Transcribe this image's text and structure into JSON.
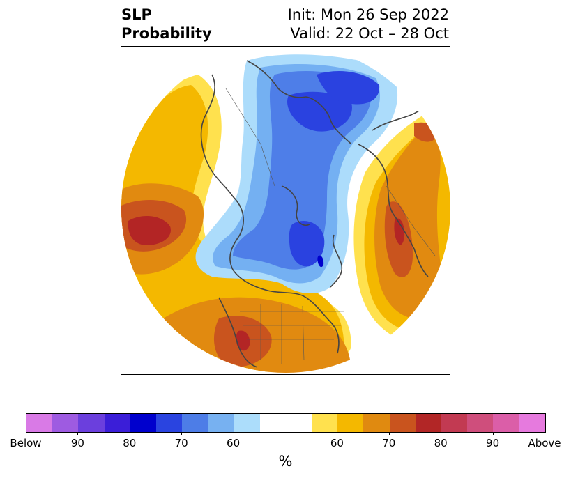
{
  "header": {
    "title_line1": "SLP",
    "title_line2": "Probability",
    "init_text": "Init: Mon 26 Sep 2022",
    "valid_text": "Valid: 22 Oct – 28 Oct"
  },
  "colors": {
    "below_90plus": "#e07ae8",
    "below_90": "#9f5ae2",
    "below_85": "#6a3adc",
    "below_80": "#3f1fd6",
    "below_75": "#0000cd",
    "below_70": "#2a42e0",
    "below_65": "#4e7ee8",
    "below_60": "#74b0f2",
    "below_55": "#acdcfb",
    "neutral": "#ffffff",
    "above_55": "#ffe14e",
    "above_60": "#f4b800",
    "above_65": "#e18a10",
    "above_70": "#c9541e",
    "above_75": "#b32525",
    "above_80": "#c03a50",
    "above_85": "#cf4d7a",
    "above_90": "#dc5ea8",
    "above_90plus": "#e87ce0",
    "coastline": "#444444"
  },
  "colorbar": {
    "segments": [
      "#d97ae6",
      "#9e5be1",
      "#6b3fdd",
      "#3b1ed8",
      "#0000cd",
      "#2a44e0",
      "#4d7de7",
      "#77b1f1",
      "#acddfb",
      "#ffffff",
      "#ffe14e",
      "#f4b800",
      "#e08a10",
      "#c9541e",
      "#b22626",
      "#c23a52",
      "#cf4e7c",
      "#db5ea8",
      "#e67ade"
    ],
    "tick_labels": [
      "Below",
      "90",
      "80",
      "70",
      "60",
      "60",
      "70",
      "80",
      "90",
      "Above"
    ],
    "unit_label": "%"
  }
}
